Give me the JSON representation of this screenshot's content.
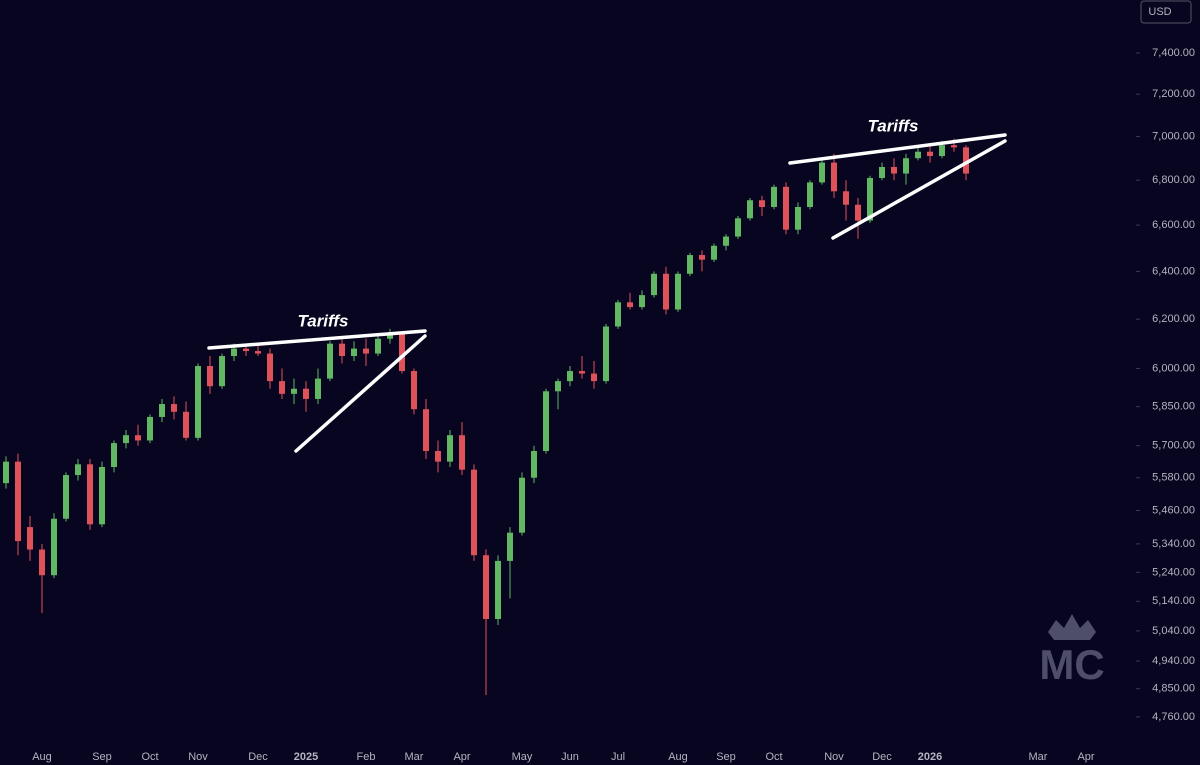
{
  "chart_data": {
    "type": "candlestick",
    "currency": "USD",
    "log_scale": true,
    "grid": false,
    "up_color": "#62b862",
    "down_color": "#e0525a",
    "ylim": [
      4672,
      7665
    ],
    "yticks": [
      {
        "value": 7400,
        "label": "7,400.00"
      },
      {
        "value": 7200,
        "label": "7,200.00"
      },
      {
        "value": 7000,
        "label": "7,000.00"
      },
      {
        "value": 6800,
        "label": "6,800.00"
      },
      {
        "value": 6600,
        "label": "6,600.00"
      },
      {
        "value": 6400,
        "label": "6,400.00"
      },
      {
        "value": 6200,
        "label": "6,200.00"
      },
      {
        "value": 6000,
        "label": "6,000.00"
      },
      {
        "value": 5850,
        "label": "5,850.00"
      },
      {
        "value": 5700,
        "label": "5,700.00"
      },
      {
        "value": 5580,
        "label": "5,580.00"
      },
      {
        "value": 5460,
        "label": "5,460.00"
      },
      {
        "value": 5340,
        "label": "5,340.00"
      },
      {
        "value": 5240,
        "label": "5,240.00"
      },
      {
        "value": 5140,
        "label": "5,140.00"
      },
      {
        "value": 5040,
        "label": "5,040.00"
      },
      {
        "value": 4940,
        "label": "4,940.00"
      },
      {
        "value": 4850,
        "label": "4,850.00"
      },
      {
        "value": 4760,
        "label": "4,760.00"
      }
    ],
    "annotations": [
      {
        "text": "Tariffs"
      },
      {
        "text": "Tariffs"
      }
    ],
    "watermark": "MC",
    "categories": [
      null,
      null,
      null,
      "Aug",
      null,
      null,
      null,
      null,
      "Sep",
      null,
      null,
      null,
      "Oct",
      null,
      null,
      null,
      "Nov",
      null,
      null,
      null,
      null,
      "Dec",
      null,
      null,
      null,
      "2025",
      null,
      null,
      null,
      null,
      "Feb",
      null,
      null,
      null,
      "Mar",
      null,
      null,
      null,
      "Apr",
      null,
      null,
      null,
      null,
      "May",
      null,
      null,
      null,
      "Jun",
      null,
      null,
      null,
      "Jul",
      null,
      null,
      null,
      null,
      "Aug",
      null,
      null,
      null,
      "Sep",
      null,
      null,
      null,
      "Oct",
      null,
      null,
      null,
      null,
      "Nov",
      null,
      null,
      null,
      "Dec",
      null,
      null,
      null,
      "2026",
      null,
      null,
      null,
      null,
      null,
      null,
      null,
      null,
      "Mar",
      null,
      null,
      null,
      "Apr",
      null,
      null,
      null
    ],
    "open": [
      5560,
      5640,
      5400,
      5320,
      5230,
      5430,
      5590,
      5630,
      5410,
      5620,
      5710,
      5740,
      5720,
      5810,
      5860,
      5830,
      5730,
      6010,
      5930,
      6050,
      6080,
      6070,
      6060,
      5950,
      5900,
      5920,
      5880,
      5960,
      6100,
      6050,
      6080,
      6060,
      6120,
      6140,
      5990,
      5840,
      5680,
      5640,
      5740,
      5610,
      5300,
      5080,
      5280,
      5380,
      5580,
      5680,
      5910,
      5950,
      5990,
      5980,
      5950,
      6170,
      6270,
      6250,
      6300,
      6390,
      6240,
      6390,
      6470,
      6450,
      6510,
      6550,
      6630,
      6710,
      6680,
      6770,
      6580,
      6680,
      6790,
      6880,
      6750,
      6690,
      6620,
      6810,
      6860,
      6830,
      6900,
      6930,
      6910,
      6960,
      6950,
      null,
      null,
      null,
      null,
      null,
      null,
      null,
      null,
      null,
      null,
      null,
      null,
      null
    ],
    "high": [
      5660,
      5670,
      5440,
      5340,
      5450,
      5600,
      5650,
      5650,
      5640,
      5720,
      5760,
      5780,
      5820,
      5880,
      5890,
      5870,
      6020,
      6050,
      6060,
      6100,
      6100,
      6090,
      6080,
      6000,
      5960,
      5950,
      6000,
      6110,
      6130,
      6110,
      6120,
      6140,
      6160,
      6150,
      6000,
      5880,
      5720,
      5760,
      5790,
      5630,
      5320,
      5300,
      5400,
      5600,
      5700,
      5920,
      5960,
      6010,
      6050,
      6030,
      6180,
      6280,
      6310,
      6320,
      6400,
      6420,
      6400,
      6480,
      6490,
      6520,
      6560,
      6640,
      6720,
      6730,
      6780,
      6790,
      6700,
      6800,
      6900,
      6920,
      6800,
      6720,
      6820,
      6880,
      6900,
      6920,
      6950,
      6970,
      6980,
      6990,
      6960,
      null,
      null,
      null,
      null,
      null,
      null,
      null,
      null,
      null,
      null,
      null,
      null,
      null
    ],
    "low": [
      5540,
      5300,
      5280,
      5100,
      5220,
      5420,
      5570,
      5390,
      5400,
      5600,
      5690,
      5700,
      5710,
      5790,
      5800,
      5720,
      5720,
      5900,
      5920,
      6030,
      6050,
      6050,
      5920,
      5880,
      5860,
      5830,
      5860,
      5950,
      6020,
      6030,
      6010,
      6050,
      6100,
      5980,
      5820,
      5650,
      5600,
      5620,
      5590,
      5280,
      4830,
      5060,
      5150,
      5370,
      5560,
      5670,
      5840,
      5930,
      5960,
      5920,
      5940,
      6160,
      6240,
      6240,
      6290,
      6220,
      6230,
      6380,
      6400,
      6440,
      6490,
      6540,
      6620,
      6640,
      6670,
      6560,
      6560,
      6670,
      6780,
      6720,
      6620,
      6540,
      6610,
      6800,
      6800,
      6780,
      6890,
      6880,
      6900,
      6930,
      6800,
      null,
      null,
      null,
      null,
      null,
      null,
      null,
      null,
      null,
      null,
      null,
      null,
      null
    ],
    "close": [
      5640,
      5350,
      5320,
      5230,
      5430,
      5590,
      5630,
      5410,
      5620,
      5710,
      5740,
      5720,
      5810,
      5860,
      5830,
      5730,
      6010,
      5930,
      6050,
      6080,
      6070,
      6060,
      5950,
      5900,
      5920,
      5880,
      5960,
      6100,
      6050,
      6080,
      6060,
      6120,
      6140,
      5990,
      5840,
      5680,
      5640,
      5740,
      5610,
      5300,
      5080,
      5280,
      5380,
      5580,
      5680,
      5910,
      5950,
      5990,
      5980,
      5950,
      6170,
      6270,
      6250,
      6300,
      6390,
      6240,
      6390,
      6470,
      6450,
      6510,
      6550,
      6630,
      6710,
      6680,
      6770,
      6580,
      6680,
      6790,
      6880,
      6750,
      6690,
      6620,
      6810,
      6860,
      6830,
      6900,
      6930,
      6910,
      6960,
      6950,
      6830,
      null,
      null,
      null,
      null,
      null,
      null,
      null,
      null,
      null,
      null,
      null,
      null,
      null
    ]
  }
}
